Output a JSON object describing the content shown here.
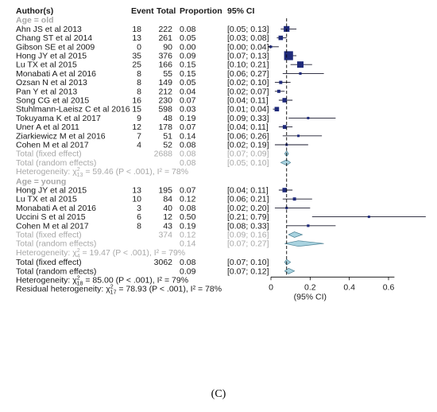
{
  "panel_label": "(C)",
  "chart_data": {
    "type": "forest",
    "headers": {
      "author": "Author(s)",
      "event": "Event",
      "total": "Total",
      "proportion": "Proportion",
      "ci": "95% CI"
    },
    "xaxis": {
      "ticks": [
        "0",
        "0.2",
        "0.4",
        "0.6"
      ],
      "tick_values": [
        0,
        0.2,
        0.4,
        0.6
      ],
      "label": "(95% CI)",
      "xlim": [
        0,
        0.63
      ]
    },
    "reference_line": 0.08,
    "groups": [
      {
        "label": "Age = old",
        "studies": [
          {
            "author": "Ahn JS et al 2013",
            "event": "18",
            "total": "222",
            "prop": "0.08",
            "ci": "[0.05; 0.13]",
            "est": 0.08,
            "lo": 0.05,
            "hi": 0.13,
            "w": 4.5
          },
          {
            "author": "Chang ST et al 2014",
            "event": "13",
            "total": "261",
            "prop": "0.05",
            "ci": "[0.03; 0.08]",
            "est": 0.05,
            "lo": 0.03,
            "hi": 0.08,
            "w": 3.5
          },
          {
            "author": "Gibson SE et al 2009",
            "event": "0",
            "total": "90",
            "prop": "0.00",
            "ci": "[0.00; 0.04]",
            "est": 0.0,
            "lo": 0.0,
            "hi": 0.04,
            "w": 0.5,
            "arrow": true
          },
          {
            "author": "Hong JY et al 2015",
            "event": "35",
            "total": "376",
            "prop": "0.09",
            "ci": "[0.07; 0.13]",
            "est": 0.09,
            "lo": 0.07,
            "hi": 0.13,
            "w": 7.0
          },
          {
            "author": "Lu TX et al 2015",
            "event": "25",
            "total": "166",
            "prop": "0.15",
            "ci": "[0.10; 0.21]",
            "est": 0.15,
            "lo": 0.1,
            "hi": 0.21,
            "w": 5.0
          },
          {
            "author": "Monabati A et al 2016",
            "event": "8",
            "total": "55",
            "prop": "0.15",
            "ci": "[0.06; 0.27]",
            "est": 0.15,
            "lo": 0.06,
            "hi": 0.27,
            "w": 2.0
          },
          {
            "author": "Ozsan N et al 2013",
            "event": "8",
            "total": "149",
            "prop": "0.05",
            "ci": "[0.02; 0.10]",
            "est": 0.05,
            "lo": 0.02,
            "hi": 0.1,
            "w": 2.5
          },
          {
            "author": "Pan Y et al 2013",
            "event": "8",
            "total": "212",
            "prop": "0.04",
            "ci": "[0.02; 0.07]",
            "est": 0.04,
            "lo": 0.02,
            "hi": 0.07,
            "w": 2.5
          },
          {
            "author": "Song CG et al 2015",
            "event": "16",
            "total": "230",
            "prop": "0.07",
            "ci": "[0.04; 0.11]",
            "est": 0.07,
            "lo": 0.04,
            "hi": 0.11,
            "w": 3.5
          },
          {
            "author": "Stuhlmann-Laeisz C et al 2016",
            "event": "15",
            "total": "598",
            "prop": "0.03",
            "ci": "[0.01; 0.04]",
            "est": 0.03,
            "lo": 0.01,
            "hi": 0.04,
            "w": 3.5
          },
          {
            "author": "Tokuyama K et al 2017",
            "event": "9",
            "total": "48",
            "prop": "0.19",
            "ci": "[0.09; 0.33]",
            "est": 0.19,
            "lo": 0.09,
            "hi": 0.33,
            "w": 1.5
          },
          {
            "author": "Uner A et al 2011",
            "event": "12",
            "total": "178",
            "prop": "0.07",
            "ci": "[0.04; 0.11]",
            "est": 0.07,
            "lo": 0.04,
            "hi": 0.11,
            "w": 3.0
          },
          {
            "author": "Ziarkiewicz M et al 2016",
            "event": "7",
            "total": "51",
            "prop": "0.14",
            "ci": "[0.06; 0.26]",
            "est": 0.14,
            "lo": 0.06,
            "hi": 0.26,
            "w": 1.8
          },
          {
            "author": "Cohen M et al 2017",
            "event": "4",
            "total": "52",
            "prop": "0.08",
            "ci": "[0.02; 0.19]",
            "est": 0.08,
            "lo": 0.02,
            "hi": 0.19,
            "w": 1.2
          }
        ],
        "fixed": {
          "label": "Total (fixed effect)",
          "total": "2688",
          "prop": "0.08",
          "ci": "[0.07; 0.09]",
          "est": 0.08,
          "lo": 0.07,
          "hi": 0.09
        },
        "random": {
          "label": "Total (random effects)",
          "prop": "0.08",
          "ci": "[0.05; 0.10]",
          "est": 0.08,
          "lo": 0.05,
          "hi": 0.1
        },
        "heterogeneity": {
          "prefix": "Heterogeneity: χ",
          "sub": "13",
          "sup": "2",
          "suffix": " = 59.46 (P < .001), I² = 78%"
        }
      },
      {
        "label": "Age = young",
        "studies": [
          {
            "author": "Hong JY et al 2015",
            "event": "13",
            "total": "195",
            "prop": "0.07",
            "ci": "[0.04; 0.11]",
            "est": 0.07,
            "lo": 0.04,
            "hi": 0.11,
            "w": 3.5
          },
          {
            "author": "Lu TX et al 2015",
            "event": "10",
            "total": "84",
            "prop": "0.12",
            "ci": "[0.06; 0.21]",
            "est": 0.12,
            "lo": 0.06,
            "hi": 0.21,
            "w": 2.5
          },
          {
            "author": "Monabati A et al 2016",
            "event": "3",
            "total": "40",
            "prop": "0.08",
            "ci": "[0.02; 0.20]",
            "est": 0.08,
            "lo": 0.02,
            "hi": 0.2,
            "w": 1.0
          },
          {
            "author": "Uccini S et al 2015",
            "event": "6",
            "total": "12",
            "prop": "0.50",
            "ci": "[0.21; 0.79]",
            "est": 0.5,
            "lo": 0.21,
            "hi": 0.79,
            "w": 1.0,
            "clip": true
          },
          {
            "author": "Cohen M et al 2017",
            "event": "8",
            "total": "43",
            "prop": "0.19",
            "ci": "[0.08; 0.33]",
            "est": 0.19,
            "lo": 0.08,
            "hi": 0.33,
            "w": 2.0
          }
        ],
        "fixed": {
          "label": "Total (fixed effect)",
          "total": "374",
          "prop": "0.12",
          "ci": "[0.09; 0.16]",
          "est": 0.12,
          "lo": 0.09,
          "hi": 0.16
        },
        "random": {
          "label": "Total (random effects)",
          "prop": "0.14",
          "ci": "[0.07; 0.27]",
          "est": 0.14,
          "lo": 0.07,
          "hi": 0.27
        },
        "heterogeneity": {
          "prefix": "Heterogeneity: χ",
          "sub": "4",
          "sup": "2",
          "suffix": " = 19.47 (P < .001), I² = 79%"
        }
      }
    ],
    "overall": {
      "fixed": {
        "label": "Total (fixed effect)",
        "total": "3062",
        "prop": "0.08",
        "ci": "[0.07; 0.10]",
        "est": 0.08,
        "lo": 0.07,
        "hi": 0.1
      },
      "random": {
        "label": "Total (random effects)",
        "prop": "0.09",
        "ci": "[0.07; 0.12]",
        "est": 0.09,
        "lo": 0.07,
        "hi": 0.12
      },
      "heterogeneity": {
        "prefix": "Heterogeneity: χ",
        "sub": "18",
        "sup": "2",
        "suffix": " = 85.00 (P < .001), I² = 79%"
      },
      "residual": {
        "prefix": "Residual heterogeneity: χ",
        "sub": "17",
        "sup": "2",
        "suffix": " = 78.93 (P < .001), I² = 78%"
      }
    }
  }
}
